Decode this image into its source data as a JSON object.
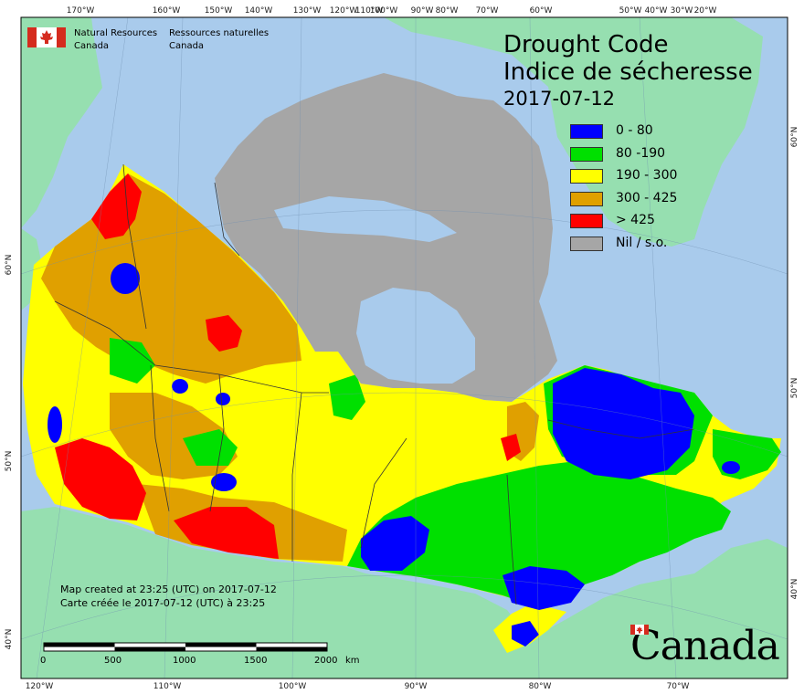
{
  "title": {
    "en": "Drought Code",
    "fr": "Indice de sécheresse",
    "date": "2017-07-12"
  },
  "legend": [
    {
      "label": "0 - 80",
      "color": "#0000ff"
    },
    {
      "label": "80 -190",
      "color": "#00e000"
    },
    {
      "label": "190 - 300",
      "color": "#ffff00"
    },
    {
      "label": "300 - 425",
      "color": "#e0a000"
    },
    {
      "label": "> 425",
      "color": "#ff0000"
    },
    {
      "label": "Nil / s.o.",
      "color": "#a6a6a6"
    }
  ],
  "agency": {
    "en_line1": "Natural Resources",
    "en_line2": "Canada",
    "fr_line1": "Ressources naturelles",
    "fr_line2": "Canada"
  },
  "credit": {
    "en": "Map created at 23:25 (UTC) on 2017-07-12",
    "fr": "Carte créée le 2017-07-12 (UTC) à 23:25"
  },
  "scale": {
    "labels": [
      "0",
      "500",
      "1000",
      "1500",
      "2000"
    ],
    "unit": "km"
  },
  "wordmark": "Canada",
  "graticule": {
    "top": [
      "170°W",
      "160°W",
      "150°W",
      "140°W",
      "130°W",
      "120°W",
      "110°W",
      "100°W",
      "90°W",
      "80°W",
      "70°W",
      "60°W",
      "50°W",
      "40°W",
      "30°W",
      "20°W"
    ],
    "bottom": [
      "120°W",
      "110°W",
      "100°W",
      "90°W",
      "80°W",
      "70°W"
    ],
    "left": [
      "60°N",
      "50°N",
      "40°N"
    ],
    "right": [
      "60°N",
      "50°N",
      "40°N"
    ]
  },
  "colors": {
    "ocean": "#a9cbec",
    "land_other": "#96dfb0",
    "no_data": "#a6a6a6",
    "frame": "#000000"
  }
}
